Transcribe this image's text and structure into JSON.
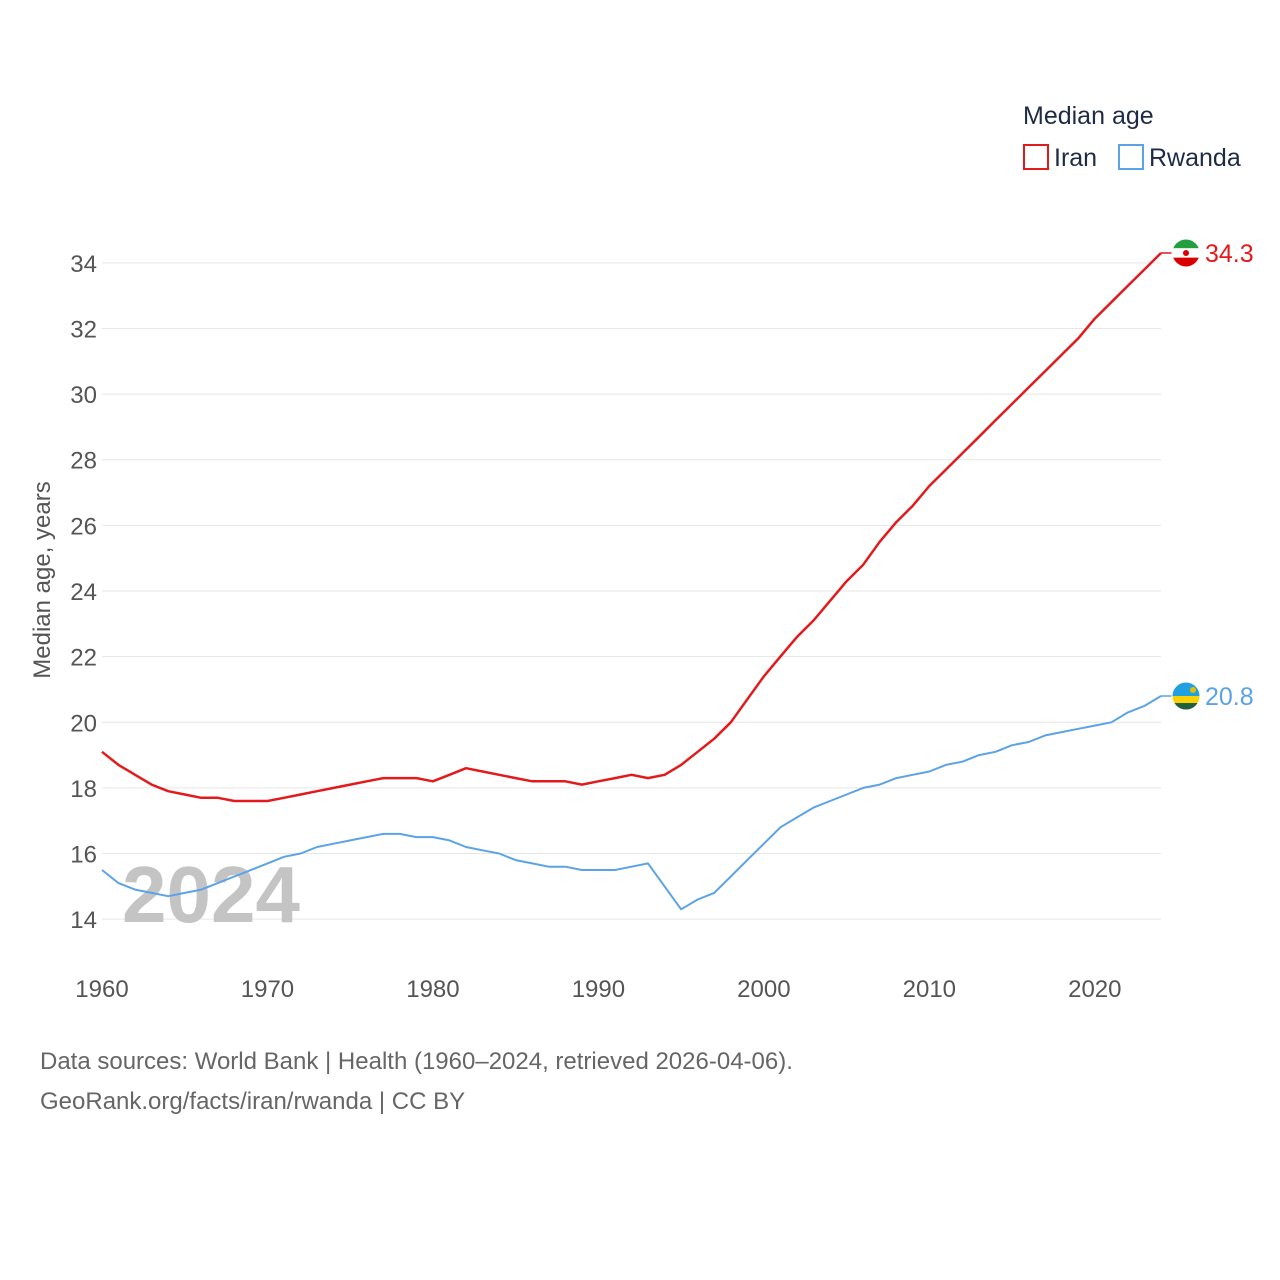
{
  "chart_data": {
    "type": "line",
    "title": "",
    "xlabel": "",
    "ylabel": "Median age, years",
    "xlim": [
      1960,
      2024
    ],
    "ylim": [
      13,
      35
    ],
    "x_ticks": [
      1960,
      1970,
      1980,
      1990,
      2000,
      2010,
      2020
    ],
    "y_ticks": [
      14,
      16,
      18,
      20,
      22,
      24,
      26,
      28,
      30,
      32,
      34
    ],
    "grid": true,
    "legend_title": "Median age",
    "legend_position": "top-right",
    "year_watermark": "2024",
    "x": [
      1960,
      1961,
      1962,
      1963,
      1964,
      1965,
      1966,
      1967,
      1968,
      1969,
      1970,
      1971,
      1972,
      1973,
      1974,
      1975,
      1976,
      1977,
      1978,
      1979,
      1980,
      1981,
      1982,
      1983,
      1984,
      1985,
      1986,
      1987,
      1988,
      1989,
      1990,
      1991,
      1992,
      1993,
      1994,
      1995,
      1996,
      1997,
      1998,
      1999,
      2000,
      2001,
      2002,
      2003,
      2004,
      2005,
      2006,
      2007,
      2008,
      2009,
      2010,
      2011,
      2012,
      2013,
      2014,
      2015,
      2016,
      2017,
      2018,
      2019,
      2020,
      2021,
      2022,
      2023,
      2024
    ],
    "series": [
      {
        "name": "Iran",
        "color": "#e31a1c",
        "end_label": "34.3",
        "flag_icon": "iran-flag-icon",
        "values": [
          19.1,
          18.7,
          18.4,
          18.1,
          17.9,
          17.8,
          17.7,
          17.7,
          17.6,
          17.6,
          17.6,
          17.7,
          17.8,
          17.9,
          18.0,
          18.1,
          18.2,
          18.3,
          18.3,
          18.3,
          18.2,
          18.4,
          18.6,
          18.5,
          18.4,
          18.3,
          18.2,
          18.2,
          18.2,
          18.1,
          18.2,
          18.3,
          18.4,
          18.3,
          18.4,
          18.7,
          19.1,
          19.5,
          20.0,
          20.7,
          21.4,
          22.0,
          22.6,
          23.1,
          23.7,
          24.3,
          24.8,
          25.5,
          26.1,
          26.6,
          27.2,
          27.7,
          28.2,
          28.7,
          29.2,
          29.7,
          30.2,
          30.7,
          31.2,
          31.7,
          32.3,
          32.8,
          33.3,
          33.8,
          34.3
        ]
      },
      {
        "name": "Rwanda",
        "color": "#5ba3e6",
        "end_label": "20.8",
        "flag_icon": "rwanda-flag-icon",
        "values": [
          15.5,
          15.1,
          14.9,
          14.8,
          14.7,
          14.8,
          14.9,
          15.1,
          15.3,
          15.5,
          15.7,
          15.9,
          16.0,
          16.2,
          16.3,
          16.4,
          16.5,
          16.6,
          16.6,
          16.5,
          16.5,
          16.4,
          16.2,
          16.1,
          16.0,
          15.8,
          15.7,
          15.6,
          15.6,
          15.5,
          15.5,
          15.5,
          15.6,
          15.7,
          15.0,
          14.3,
          14.6,
          14.8,
          15.3,
          15.8,
          16.3,
          16.8,
          17.1,
          17.4,
          17.6,
          17.8,
          18.0,
          18.1,
          18.3,
          18.4,
          18.5,
          18.7,
          18.8,
          19.0,
          19.1,
          19.3,
          19.4,
          19.6,
          19.7,
          19.8,
          19.9,
          20.0,
          20.3,
          20.5,
          20.8
        ]
      }
    ],
    "source_line_1": "Data sources: World Bank | Health (1960–2024, retrieved 2026-04-06).",
    "source_line_2": "GeoRank.org/facts/iran/rwanda | CC BY"
  }
}
